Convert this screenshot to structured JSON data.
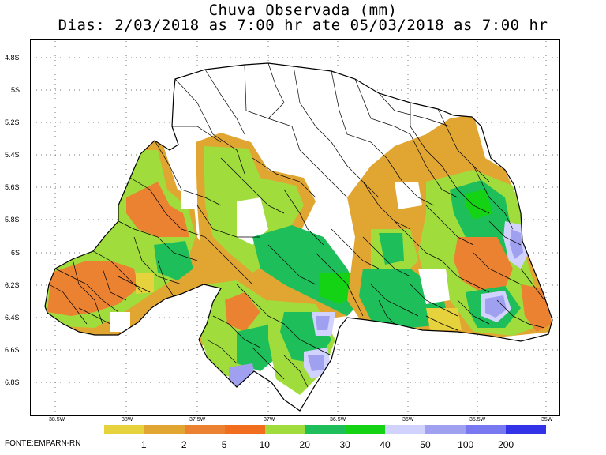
{
  "title": "Chuva Observada (mm)",
  "subtitle": "Dias: 2/03/2018 as 7:00 hr ate 05/03/2018 as 7:00 hr",
  "source": "FONTE:EMPARN-RN",
  "latitude_labels": [
    "4.8S",
    "5S",
    "5.2S",
    "5.4S",
    "5.6S",
    "5.8S",
    "6S",
    "6.2S",
    "6.4S",
    "6.6S",
    "6.8S"
  ],
  "longitude_labels": [
    "38.5W",
    "38W",
    "37.5W",
    "37W",
    "36.5W",
    "36W",
    "35.5W",
    "35W"
  ],
  "legend": {
    "thresholds": [
      "1",
      "2",
      "5",
      "10",
      "20",
      "30",
      "40",
      "50",
      "100",
      "200"
    ],
    "colors": [
      "#e6d23c",
      "#e1a632",
      "#ea8232",
      "#f06e1e",
      "#a0dc3c",
      "#1ebe5a",
      "#14d214",
      "#d2d2ff",
      "#a0a0f0",
      "#7878f0",
      "#3232e6"
    ]
  },
  "colors": {
    "background": "#ffffff",
    "frame": "#000000",
    "border_lines": "#000000",
    "grid_dots": "#555555"
  }
}
